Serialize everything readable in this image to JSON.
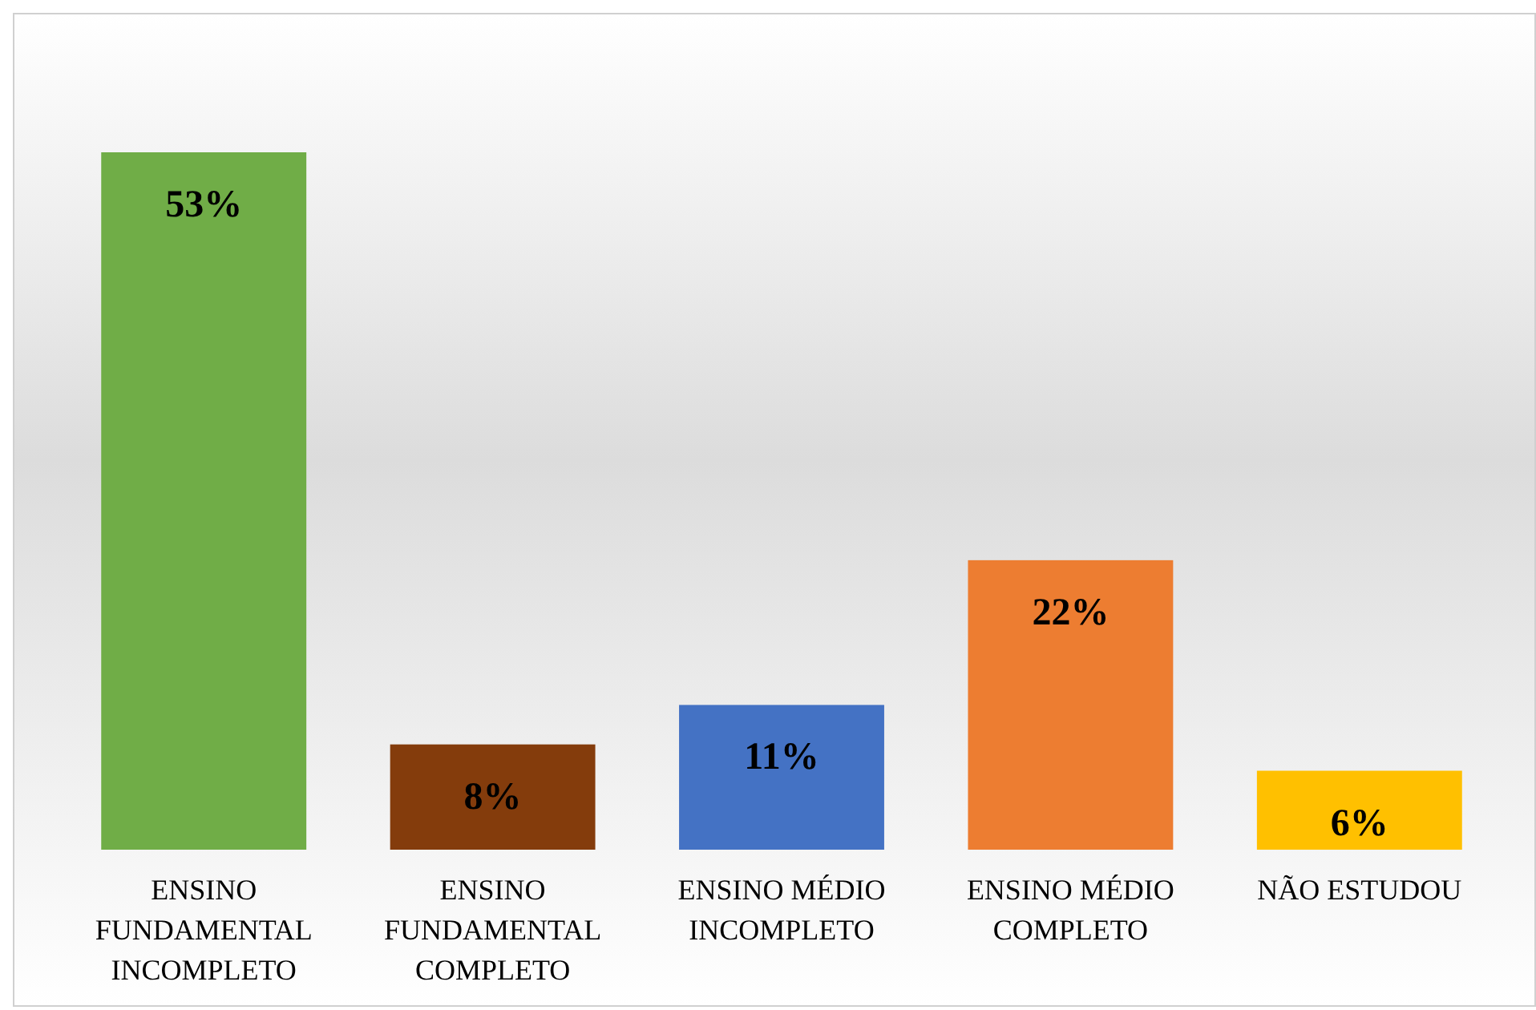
{
  "chart_data": {
    "type": "bar",
    "categories": [
      "ENSINO FUNDAMENTAL INCOMPLETO",
      "ENSINO FUNDAMENTAL COMPLETO",
      "ENSINO MÉDIO INCOMPLETO",
      "ENSINO MÉDIO COMPLETO",
      "NÃO ESTUDOU"
    ],
    "values": [
      53,
      8,
      11,
      22,
      6
    ],
    "colors": [
      "#70ad47",
      "#843c0c",
      "#4472c4",
      "#ed7d31",
      "#ffc000"
    ],
    "value_labels": [
      "53%",
      "8%",
      "11%",
      "22%",
      "6%"
    ],
    "grid": false,
    "legend": false
  }
}
